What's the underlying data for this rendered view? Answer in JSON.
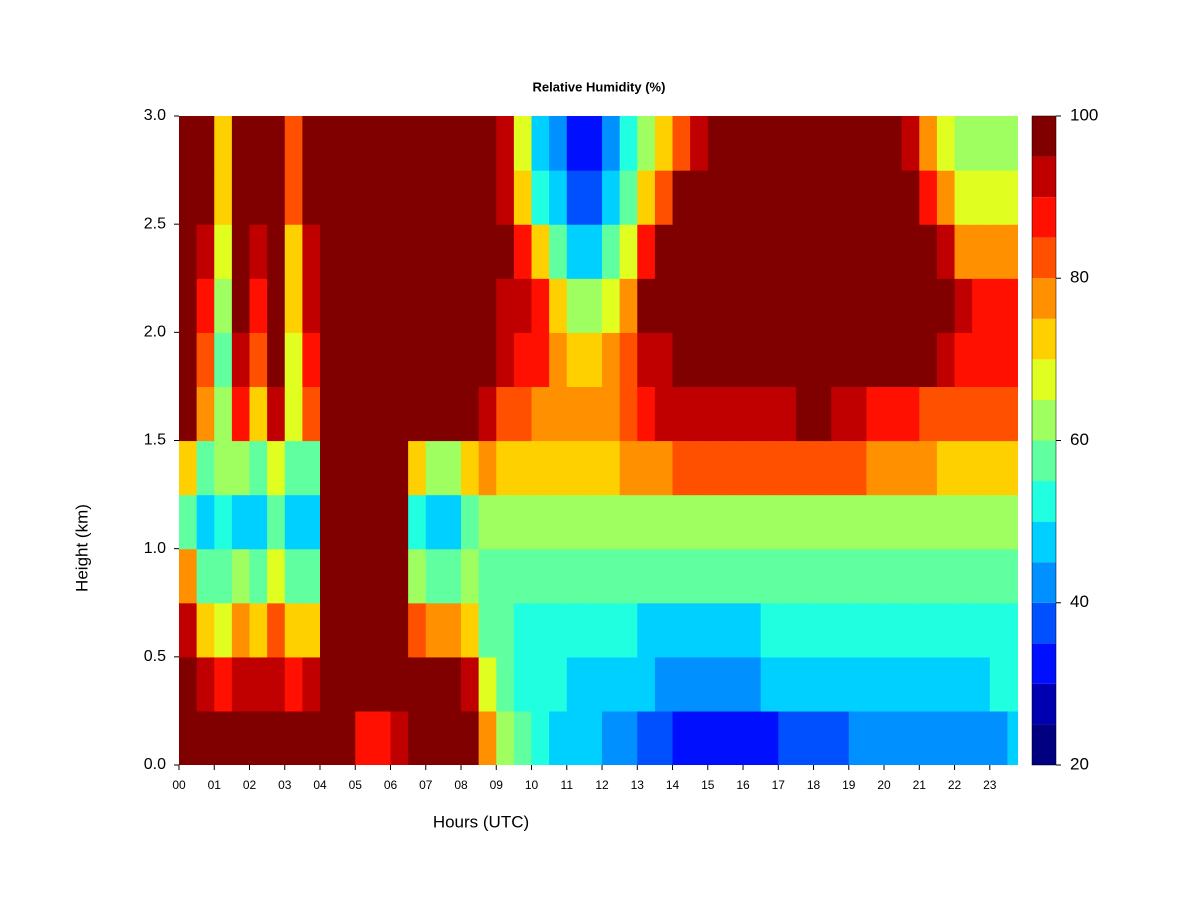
{
  "chart_data": {
    "type": "heatmap",
    "title": "Relative Humidity (%)",
    "xlabel": "Hours (UTC)",
    "ylabel": "Height (km)",
    "xlim": [
      0,
      23.8
    ],
    "ylim": [
      0,
      3
    ],
    "xticks": [
      {
        "value": 0,
        "label": "00"
      },
      {
        "value": 1,
        "label": "01"
      },
      {
        "value": 2,
        "label": "02"
      },
      {
        "value": 3,
        "label": "03"
      },
      {
        "value": 4,
        "label": "04"
      },
      {
        "value": 5,
        "label": "05"
      },
      {
        "value": 6,
        "label": "06"
      },
      {
        "value": 7,
        "label": "07"
      },
      {
        "value": 8,
        "label": "08"
      },
      {
        "value": 9,
        "label": "09"
      },
      10,
      11,
      12,
      13,
      14,
      15,
      16,
      17,
      18,
      19,
      20,
      21,
      22,
      23
    ],
    "yticks": [
      {
        "value": 0,
        "label": "0.0"
      },
      0.5,
      {
        "value": 1,
        "label": "1.0"
      },
      1.5,
      {
        "value": 2,
        "label": "2.0"
      },
      2.5,
      {
        "value": 3,
        "label": "3.0"
      }
    ],
    "x": [
      0.25,
      0.75,
      1.25,
      1.75,
      2.25,
      2.75,
      3.25,
      3.75,
      4.25,
      4.75,
      5.25,
      5.75,
      6.25,
      6.75,
      7.25,
      7.75,
      8.25,
      8.75,
      9.25,
      9.75,
      10.25,
      10.75,
      11.25,
      11.75,
      12.25,
      12.75,
      13.25,
      13.75,
      14.25,
      14.75,
      15.25,
      15.75,
      16.25,
      16.75,
      17.25,
      17.75,
      18.25,
      18.75,
      19.25,
      19.75,
      20.25,
      20.75,
      21.25,
      21.75,
      22.25,
      22.75,
      23.25,
      23.75
    ],
    "y": [
      0.125,
      0.375,
      0.625,
      0.875,
      1.125,
      1.375,
      1.625,
      1.875,
      2.125,
      2.375,
      2.625,
      2.875
    ],
    "z": [
      [
        100,
        100,
        100,
        100,
        100,
        100,
        100,
        100,
        98,
        95,
        88,
        85,
        90,
        100,
        100,
        100,
        98,
        75,
        60,
        55,
        50,
        48,
        46,
        45,
        44,
        42,
        38,
        35,
        34,
        33,
        33,
        33,
        34,
        34,
        35,
        36,
        37,
        38,
        40,
        40,
        40,
        40,
        40,
        40,
        42,
        42,
        44,
        46
      ],
      [
        95,
        92,
        88,
        90,
        92,
        90,
        88,
        90,
        98,
        100,
        100,
        98,
        100,
        95,
        95,
        95,
        92,
        65,
        55,
        52,
        50,
        50,
        48,
        48,
        47,
        47,
        45,
        44,
        43,
        43,
        43,
        44,
        44,
        45,
        45,
        46,
        46,
        47,
        48,
        48,
        48,
        48,
        48,
        48,
        48,
        49,
        50,
        50
      ],
      [
        90,
        70,
        65,
        75,
        70,
        80,
        70,
        72,
        100,
        100,
        100,
        100,
        100,
        80,
        75,
        78,
        70,
        58,
        55,
        54,
        52,
        52,
        52,
        52,
        50,
        50,
        48,
        48,
        48,
        48,
        48,
        48,
        49,
        50,
        50,
        50,
        51,
        52,
        52,
        52,
        52,
        52,
        52,
        52,
        52,
        52,
        53,
        53
      ],
      [
        75,
        55,
        55,
        60,
        55,
        65,
        55,
        58,
        100,
        100,
        100,
        100,
        100,
        60,
        55,
        55,
        60,
        58,
        57,
        57,
        56,
        56,
        56,
        55,
        55,
        55,
        55,
        55,
        55,
        55,
        55,
        55,
        56,
        56,
        57,
        57,
        57,
        57,
        57,
        57,
        57,
        57,
        57,
        57,
        57,
        58,
        58,
        58
      ],
      [
        55,
        45,
        50,
        48,
        45,
        55,
        45,
        48,
        100,
        100,
        100,
        100,
        100,
        50,
        45,
        45,
        55,
        60,
        60,
        60,
        60,
        60,
        60,
        60,
        60,
        60,
        60,
        62,
        62,
        62,
        62,
        63,
        63,
        63,
        63,
        64,
        64,
        64,
        64,
        64,
        64,
        64,
        64,
        64,
        63,
        63,
        63,
        63
      ],
      [
        70,
        55,
        60,
        60,
        55,
        65,
        55,
        58,
        100,
        100,
        100,
        100,
        100,
        70,
        60,
        60,
        70,
        75,
        72,
        72,
        72,
        72,
        72,
        72,
        74,
        75,
        76,
        78,
        80,
        82,
        82,
        82,
        82,
        82,
        82,
        82,
        84,
        82,
        80,
        78,
        76,
        75,
        75,
        74,
        74,
        74,
        74,
        74
      ],
      [
        95,
        75,
        60,
        85,
        70,
        90,
        65,
        80,
        100,
        100,
        100,
        100,
        100,
        100,
        95,
        95,
        98,
        90,
        82,
        80,
        78,
        75,
        75,
        75,
        78,
        82,
        86,
        90,
        92,
        92,
        92,
        92,
        92,
        92,
        94,
        96,
        95,
        93,
        90,
        88,
        86,
        85,
        84,
        84,
        82,
        80,
        80,
        80
      ],
      [
        100,
        82,
        58,
        92,
        80,
        95,
        68,
        88,
        100,
        100,
        100,
        100,
        100,
        100,
        100,
        100,
        95,
        95,
        90,
        88,
        85,
        78,
        72,
        72,
        75,
        82,
        90,
        94,
        100,
        100,
        100,
        100,
        100,
        100,
        100,
        100,
        100,
        100,
        100,
        100,
        100,
        100,
        95,
        92,
        88,
        86,
        85,
        85
      ],
      [
        100,
        88,
        60,
        95,
        88,
        95,
        70,
        90,
        100,
        100,
        100,
        100,
        100,
        100,
        100,
        100,
        100,
        98,
        92,
        90,
        85,
        70,
        60,
        60,
        65,
        78,
        95,
        100,
        100,
        100,
        100,
        100,
        100,
        100,
        100,
        100,
        100,
        100,
        100,
        100,
        100,
        100,
        100,
        100,
        90,
        88,
        86,
        86
      ],
      [
        100,
        92,
        65,
        100,
        92,
        100,
        72,
        92,
        100,
        100,
        100,
        100,
        100,
        100,
        100,
        100,
        95,
        100,
        95,
        88,
        70,
        55,
        45,
        45,
        55,
        68,
        85,
        95,
        100,
        100,
        100,
        100,
        100,
        100,
        100,
        100,
        100,
        100,
        100,
        100,
        100,
        100,
        100,
        90,
        78,
        75,
        75,
        78
      ],
      [
        100,
        95,
        70,
        100,
        100,
        100,
        80,
        100,
        100,
        100,
        100,
        100,
        100,
        100,
        100,
        100,
        100,
        100,
        90,
        70,
        50,
        45,
        38,
        38,
        45,
        55,
        70,
        80,
        95,
        100,
        100,
        100,
        100,
        100,
        100,
        100,
        100,
        100,
        100,
        100,
        100,
        100,
        85,
        75,
        68,
        66,
        66,
        68
      ],
      [
        100,
        95,
        72,
        100,
        100,
        100,
        82,
        100,
        100,
        100,
        100,
        100,
        100,
        100,
        100,
        100,
        100,
        100,
        90,
        65,
        48,
        40,
        30,
        32,
        42,
        50,
        62,
        70,
        80,
        92,
        100,
        100,
        100,
        100,
        100,
        100,
        100,
        100,
        100,
        100,
        100,
        90,
        78,
        68,
        62,
        60,
        60,
        62
      ]
    ],
    "levels": [
      20,
      25,
      30,
      35,
      40,
      45,
      50,
      55,
      60,
      65,
      70,
      75,
      80,
      85,
      90,
      95,
      100
    ],
    "colors": [
      "#000080",
      "#0000b0",
      "#0010ff",
      "#0050ff",
      "#0090ff",
      "#00d0ff",
      "#20ffe0",
      "#60ff9f",
      "#a0ff60",
      "#e0ff20",
      "#ffd000",
      "#ff9000",
      "#ff5000",
      "#ff1000",
      "#c00000",
      "#800000"
    ],
    "zlim": [
      20,
      100
    ],
    "zticks": [
      20,
      40,
      60,
      80,
      100
    ]
  }
}
